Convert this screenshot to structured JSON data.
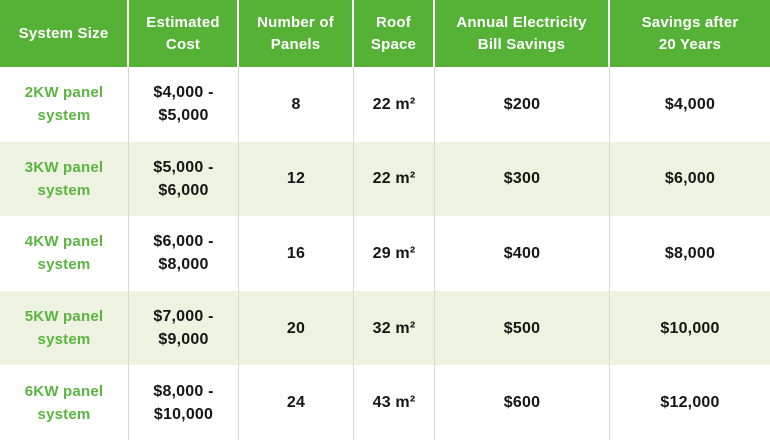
{
  "colors": {
    "header_bg": "#55b236",
    "header_text": "#ffffff",
    "row_shaded_bg": "#eef2e1",
    "row_plain_bg": "#ffffff",
    "system_text": "#5bb441",
    "value_text": "#161616",
    "divider_body": "#d7dacf",
    "divider_header": "#ffffff"
  },
  "chart_data": {
    "type": "table",
    "header_labels": [
      "System Size",
      "Estimated\nCost",
      "Number of\nPanels",
      "Roof\nSpace",
      "Annual Electricity\nBill Savings",
      "Savings after\n20 Years"
    ],
    "columns": [
      "System Size",
      "Estimated Cost",
      "Number of Panels",
      "Roof Space",
      "Annual Electricity Bill Savings",
      "Savings after 20 Years"
    ],
    "rows": [
      [
        "2KW panel system",
        "$4,000 - $5,000",
        "8",
        "22 m²",
        "$200",
        "$4,000"
      ],
      [
        "3KW panel system",
        "$5,000 - $6,000",
        "12",
        "22 m²",
        "$300",
        "$6,000"
      ],
      [
        "4KW panel system",
        "$6,000 - $8,000",
        "16",
        "29 m²",
        "$400",
        "$8,000"
      ],
      [
        "5KW panel system",
        "$7,000 - $9,000",
        "20",
        "32 m²",
        "$500",
        "$10,000"
      ],
      [
        "6KW panel system",
        "$8,000 - $10,000",
        "24",
        "43 m²",
        "$600",
        "$12,000"
      ]
    ]
  }
}
